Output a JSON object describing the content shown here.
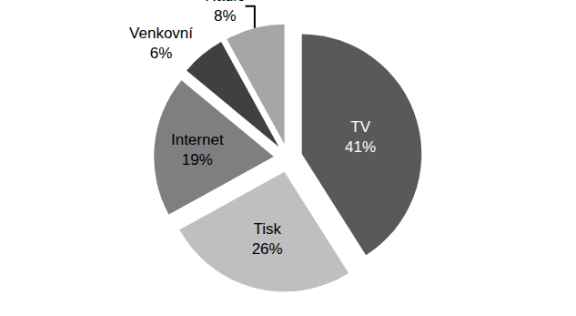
{
  "chart_data": {
    "type": "pie",
    "categories": [
      "TV",
      "Tisk",
      "Internet",
      "Venkovní",
      "Rádio"
    ],
    "values": [
      41,
      26,
      19,
      6,
      8
    ],
    "value_labels": [
      "41%",
      "26%",
      "19%",
      "6%",
      "8%"
    ],
    "colors": [
      "#595959",
      "#bfbfbf",
      "#7f7f7f",
      "#404040",
      "#a6a6a6"
    ],
    "data_labels": true
  }
}
